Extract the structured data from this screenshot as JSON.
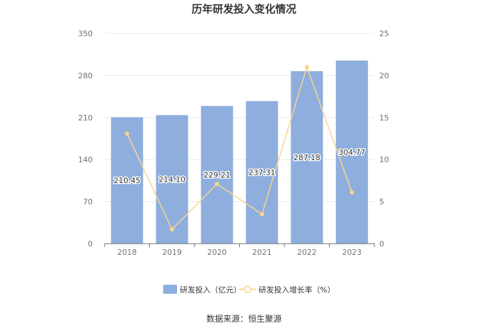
{
  "chart_data": {
    "type": "bar",
    "title": "历年研发投入变化情况",
    "categories": [
      "2018",
      "2019",
      "2020",
      "2021",
      "2022",
      "2023"
    ],
    "series": [
      {
        "name": "研发投入（亿元）",
        "type": "bar",
        "axis": "left",
        "color": "#8eaedd",
        "values": [
          210.45,
          214.1,
          229.21,
          237.31,
          287.18,
          304.77
        ],
        "labels": [
          "210.45",
          "214.10",
          "229.21",
          "237.31",
          "287.18",
          "304.77"
        ]
      },
      {
        "name": "研发投入增长率（%）",
        "type": "line",
        "axis": "right",
        "color": "#f9d58e",
        "values": [
          13.1,
          1.7,
          7.1,
          3.5,
          21.0,
          6.1
        ]
      }
    ],
    "y_left": {
      "min": 0,
      "max": 350,
      "ticks": [
        "0",
        "70",
        "140",
        "210",
        "280",
        "350"
      ]
    },
    "y_right": {
      "min": 0,
      "max": 25,
      "ticks": [
        "0",
        "5",
        "10",
        "15",
        "20",
        "25"
      ]
    },
    "grid": true,
    "legend_position": "bottom"
  },
  "source": "数据来源：恒生聚源"
}
